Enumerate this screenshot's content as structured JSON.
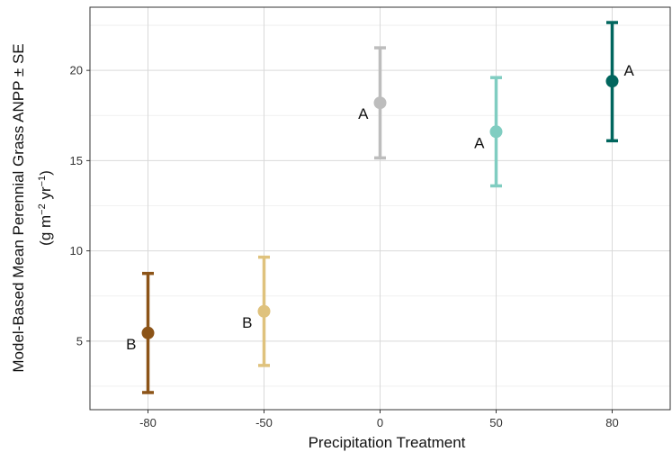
{
  "chart_data": {
    "type": "scatter",
    "title": "",
    "xlabel": "Precipitation Treatment",
    "ylabel_line1": "Model-Based Mean Perennial Grass ANPP ± SE",
    "ylabel_line2": {
      "prefix": "(g m",
      "sup1": "−2",
      "mid": " yr",
      "sup2": "−1",
      "suffix": ")"
    },
    "categories": [
      "-80",
      "-50",
      "0",
      "50",
      "80"
    ],
    "yticks": [
      "5",
      "10",
      "15",
      "20"
    ],
    "ylim": [
      1.2,
      23.5
    ],
    "grid": true,
    "legend": "none",
    "points": [
      {
        "x": "-80",
        "mean": 5.45,
        "lower": 2.15,
        "upper": 8.75,
        "letter": "B",
        "color": "#8c5418"
      },
      {
        "x": "-50",
        "mean": 6.65,
        "lower": 3.65,
        "upper": 9.65,
        "letter": "B",
        "color": "#dfc27d"
      },
      {
        "x": "0",
        "mean": 18.2,
        "lower": 15.15,
        "upper": 21.25,
        "letter": "A",
        "color": "#bdbdbd"
      },
      {
        "x": "50",
        "mean": 16.6,
        "lower": 13.6,
        "upper": 19.6,
        "letter": "A",
        "color": "#80cdc1"
      },
      {
        "x": "80",
        "mean": 19.4,
        "lower": 16.1,
        "upper": 22.65,
        "letter": "A",
        "color": "#01665e"
      }
    ]
  }
}
